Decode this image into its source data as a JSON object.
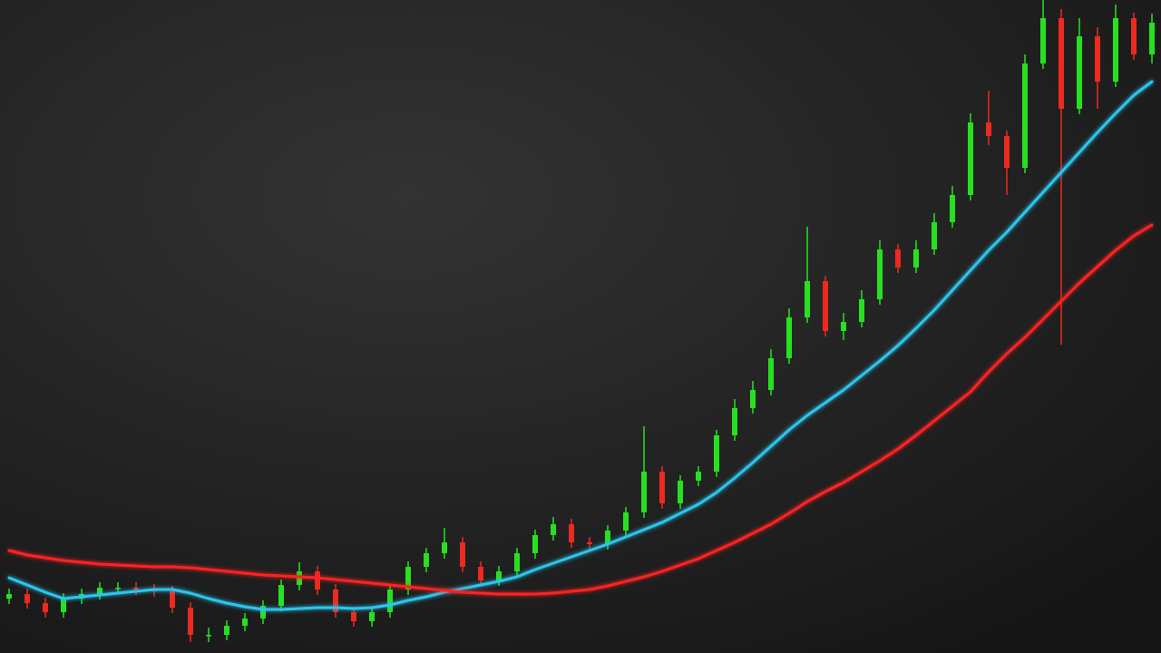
{
  "chart_data": {
    "type": "candlestick",
    "ylim": [
      0,
      720
    ],
    "candles": {
      "up_color": "#27e021",
      "down_color": "#ec2a1f",
      "open": [
        60,
        65,
        55,
        45,
        60,
        65,
        72,
        72,
        70,
        68,
        50,
        20,
        20,
        30,
        38,
        52,
        75,
        90,
        70,
        45,
        35,
        45,
        70,
        95,
        110,
        122,
        95,
        80,
        90,
        110,
        130,
        142,
        122,
        120,
        135,
        155,
        200,
        165,
        190,
        200,
        240,
        270,
        290,
        325,
        370,
        410,
        355,
        365,
        390,
        445,
        425,
        445,
        475,
        505,
        585,
        570,
        535,
        650,
        700,
        600,
        680,
        630,
        700,
        660
      ],
      "high": [
        71,
        71,
        61,
        66,
        71,
        78,
        78,
        78,
        76,
        74,
        56,
        28,
        36,
        44,
        58,
        81,
        100,
        96,
        76,
        51,
        51,
        76,
        101,
        116,
        138,
        128,
        101,
        96,
        116,
        136,
        150,
        148,
        128,
        141,
        161,
        250,
        206,
        196,
        206,
        246,
        280,
        300,
        335,
        380,
        470,
        416,
        375,
        400,
        455,
        451,
        455,
        485,
        515,
        595,
        620,
        576,
        660,
        720,
        710,
        700,
        690,
        715,
        706,
        705
      ],
      "low": [
        54,
        49,
        39,
        39,
        54,
        59,
        66,
        64,
        62,
        44,
        12,
        12,
        14,
        24,
        32,
        46,
        69,
        64,
        39,
        29,
        29,
        39,
        64,
        89,
        104,
        89,
        74,
        74,
        84,
        104,
        124,
        116,
        114,
        114,
        129,
        149,
        159,
        159,
        184,
        194,
        234,
        264,
        284,
        319,
        364,
        349,
        345,
        359,
        384,
        419,
        419,
        439,
        469,
        499,
        560,
        505,
        529,
        644,
        340,
        594,
        600,
        624,
        654,
        650
      ],
      "close": [
        65,
        55,
        45,
        60,
        65,
        72,
        72,
        70,
        68,
        50,
        20,
        20,
        30,
        38,
        52,
        75,
        90,
        70,
        45,
        35,
        45,
        70,
        95,
        110,
        122,
        95,
        80,
        90,
        110,
        130,
        142,
        122,
        120,
        135,
        155,
        200,
        165,
        190,
        200,
        240,
        270,
        290,
        325,
        370,
        410,
        355,
        365,
        390,
        445,
        425,
        445,
        475,
        505,
        585,
        570,
        535,
        650,
        700,
        600,
        680,
        630,
        700,
        660,
        695
      ]
    },
    "lines": [
      {
        "color": "#2cc6ee",
        "values": [
          83,
          75,
          67,
          60,
          62,
          64,
          66,
          68,
          70,
          70,
          66,
          60,
          55,
          51,
          48,
          48,
          49,
          50,
          50,
          49,
          50,
          53,
          58,
          62,
          67,
          71,
          75,
          79,
          84,
          92,
          99,
          106,
          113,
          120,
          128,
          136,
          144,
          154,
          164,
          177,
          193,
          210,
          228,
          246,
          262,
          276,
          290,
          306,
          322,
          339,
          358,
          378,
          400,
          422,
          444,
          464,
          486,
          508,
          530,
          552,
          574,
          595,
          615,
          630
        ]
      },
      {
        "color": "#ff2424",
        "values": [
          113,
          108,
          105,
          102,
          100,
          98,
          97,
          96,
          95,
          95,
          94,
          92,
          90,
          88,
          86,
          85,
          84,
          83,
          81,
          79,
          77,
          75,
          73,
          71,
          69,
          67,
          66,
          65,
          65,
          65,
          66,
          68,
          70,
          74,
          79,
          84,
          90,
          97,
          104,
          113,
          122,
          132,
          142,
          154,
          167,
          178,
          188,
          200,
          212,
          225,
          240,
          256,
          272,
          288,
          310,
          330,
          348,
          368,
          388,
          408,
          426,
          444,
          460,
          472
        ]
      }
    ]
  }
}
